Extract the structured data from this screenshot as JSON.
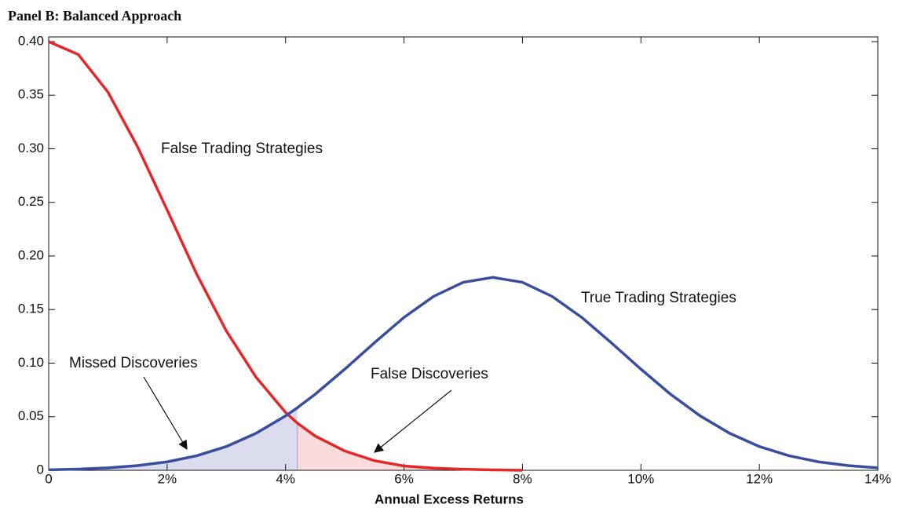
{
  "chart_data": {
    "type": "line",
    "title": "Panel B: Balanced Approach",
    "x_label": "Annual Excess Returns",
    "x": [
      0,
      0.5,
      1,
      1.5,
      2,
      2.5,
      3,
      3.5,
      4,
      4.2,
      4.5,
      5,
      5.5,
      6,
      6.5,
      7,
      7.5,
      8,
      8.5,
      9,
      9.5,
      10,
      10.5,
      11,
      11.5,
      12,
      12.5,
      13,
      13.5,
      14
    ],
    "series": [
      {
        "name": "False Trading Strategies",
        "color": "#e8262a",
        "values": [
          0.4,
          0.388,
          0.353,
          0.302,
          0.243,
          0.183,
          0.13,
          0.087,
          0.054,
          0.044,
          0.032,
          0.018,
          0.009,
          0.004,
          0.002,
          0.001,
          0.0004,
          0,
          null,
          null,
          null,
          null,
          null,
          null,
          null,
          null,
          null,
          null,
          null,
          null
        ]
      },
      {
        "name": "True Trading Strategies",
        "color": "#3a4ea0",
        "values": [
          0.0005,
          0.0011,
          0.0023,
          0.0044,
          0.0079,
          0.0136,
          0.0222,
          0.0345,
          0.0508,
          0.0584,
          0.071,
          0.0944,
          0.119,
          0.1427,
          0.1623,
          0.1754,
          0.18,
          0.1754,
          0.1623,
          0.1427,
          0.119,
          0.0944,
          0.071,
          0.0508,
          0.0345,
          0.0222,
          0.0136,
          0.0079,
          0.0044,
          0.0023
        ]
      }
    ],
    "threshold": 4.2,
    "annotations": [
      "Missed Discoveries",
      "False Discoveries"
    ],
    "shade_colors": [
      "#dcdcef",
      "#fbdcdc"
    ],
    "xlim": [
      0,
      14
    ],
    "xticks": [
      0,
      {
        "value": 2,
        "label": "2%"
      },
      {
        "value": 4,
        "label": "4%"
      },
      {
        "value": 6,
        "label": "6%"
      },
      {
        "value": 8,
        "label": "8%"
      },
      {
        "value": 10,
        "label": "10%"
      },
      {
        "value": 12,
        "label": "12%"
      },
      {
        "value": 14,
        "label": "14%"
      }
    ],
    "ylim": [
      0,
      0.4
    ],
    "yticks": [
      0,
      0.05,
      {
        "value": 0.1,
        "label": "0.10"
      },
      0.15,
      {
        "value": 0.2,
        "label": "0.20"
      },
      0.25,
      {
        "value": 0.3,
        "label": "0.30"
      },
      0.35,
      {
        "value": 0.4,
        "label": "0.40"
      }
    ],
    "grid": false
  }
}
